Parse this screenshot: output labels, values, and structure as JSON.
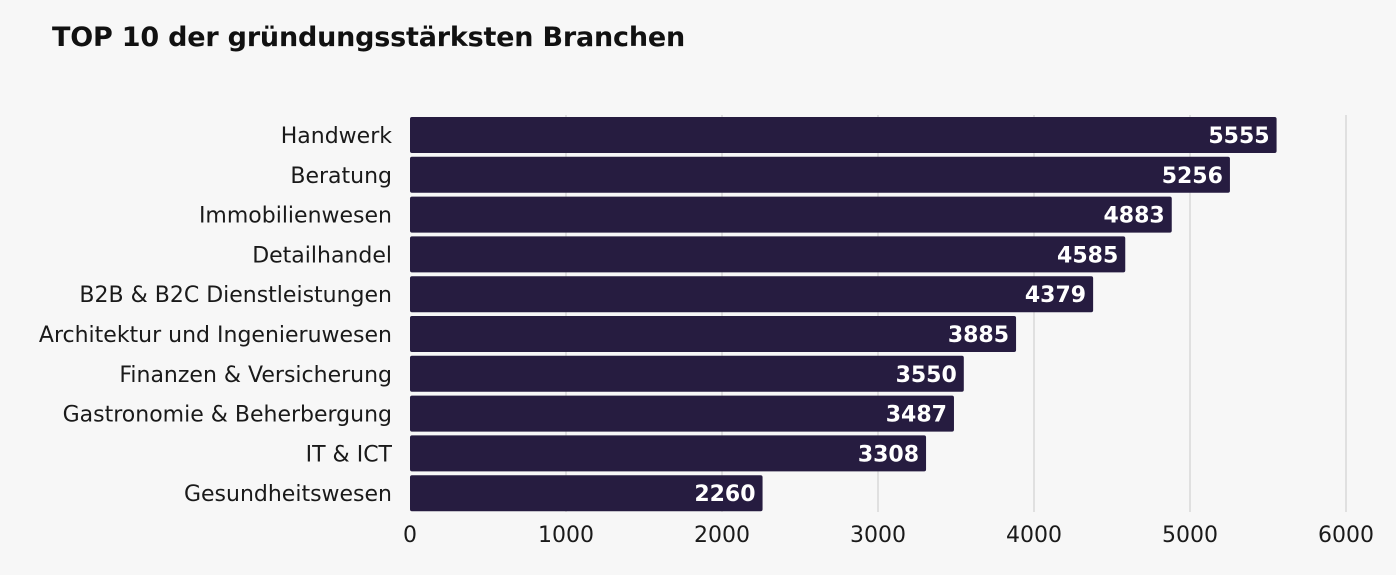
{
  "chart_data": {
    "type": "bar",
    "orientation": "horizontal",
    "title": "TOP 10 der gründungsstärksten Branchen",
    "categories": [
      "Handwerk",
      "Beratung",
      "Immobilienwesen",
      "Detailhandel",
      "B2B & B2C Dienstleistungen",
      "Architektur und Ingenieruwesen",
      "Finanzen & Versicherung",
      "Gastronomie & Beherbergung",
      "IT & ICT",
      "Gesundheitswesen"
    ],
    "values": [
      5555,
      5256,
      4883,
      4585,
      4379,
      3885,
      3550,
      3487,
      3308,
      2260
    ],
    "xlim": [
      0,
      6000
    ],
    "xticks": [
      0,
      1000,
      2000,
      3000,
      4000,
      5000,
      6000
    ],
    "xlabel": "",
    "ylabel": "",
    "grid": true,
    "legend": "none",
    "colors": {
      "bar": "#261c40",
      "grid": "#d9d9d9",
      "background": "#f7f7f7",
      "value_label": "#ffffff"
    }
  }
}
